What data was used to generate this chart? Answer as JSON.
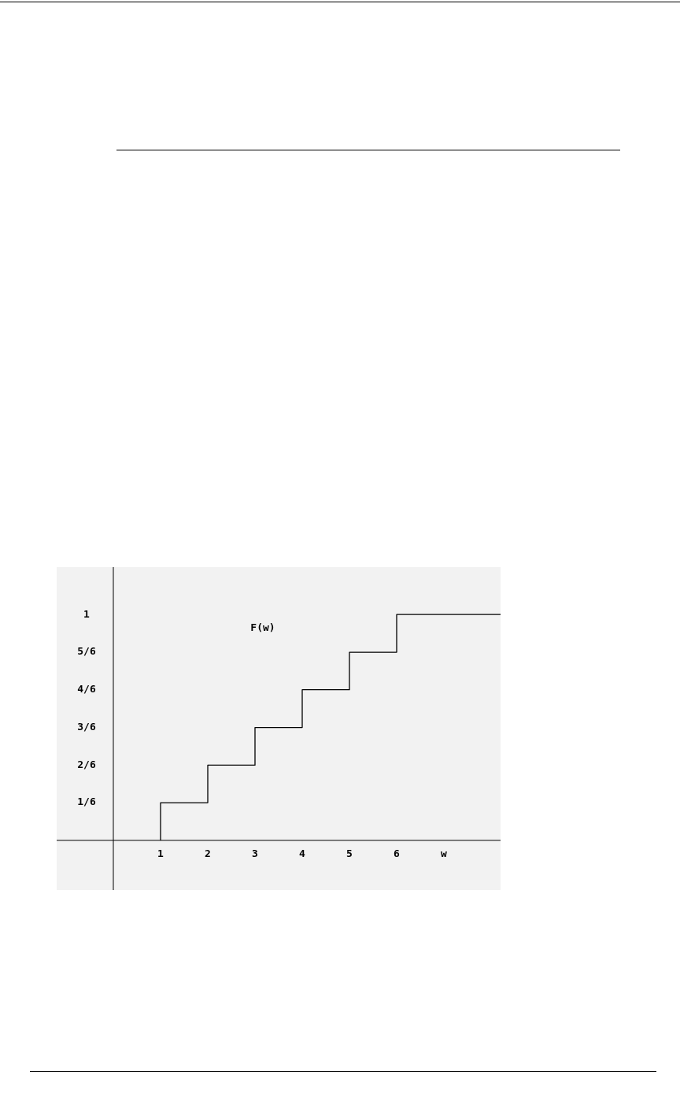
{
  "chart_data": {
    "type": "step",
    "xlabel": "w",
    "annotations": [
      "F(w)"
    ],
    "x": [
      1,
      1,
      2,
      3,
      4,
      5,
      6,
      8.2
    ],
    "values": [
      0,
      0.167,
      0.333,
      0.5,
      0.667,
      0.833,
      1,
      1
    ],
    "color": "#000000",
    "xlim": [
      -1.2,
      8.2
    ],
    "ylim": [
      -0.22,
      1.21
    ],
    "xticks": [
      1,
      2,
      3,
      4,
      5,
      6
    ],
    "yticks": [
      {
        "value": 0.167,
        "label": "1/6"
      },
      {
        "value": 0.333,
        "label": "2/6"
      },
      {
        "value": 0.5,
        "label": "3/6"
      },
      {
        "value": 0.667,
        "label": "4/6"
      },
      {
        "value": 0.833,
        "label": "5/6"
      },
      1
    ],
    "legend": false
  }
}
